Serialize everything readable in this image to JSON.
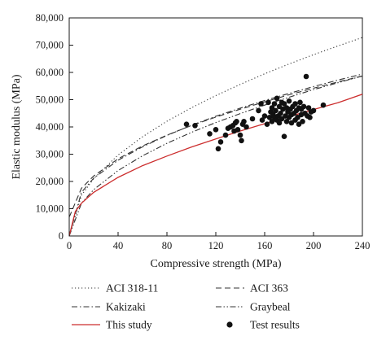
{
  "chart_data": {
    "type": "scatter",
    "xlabel": "Compressive strength (MPa)",
    "ylabel": "Elastic modulus (MPa)",
    "xlim": [
      0,
      240
    ],
    "ylim": [
      0,
      80000
    ],
    "x_ticks": [
      0,
      40,
      80,
      120,
      160,
      200,
      240
    ],
    "y_ticks": [
      0,
      10000,
      20000,
      30000,
      40000,
      50000,
      60000,
      70000,
      80000
    ],
    "x_tick_labels": [
      "0",
      "40",
      "80",
      "120",
      "160",
      "200",
      "240"
    ],
    "y_tick_labels": [
      "0",
      "10,000",
      "20,000",
      "30,000",
      "40,000",
      "50,000",
      "60,000",
      "70,000",
      "80,000"
    ],
    "grid": false,
    "legend_position": "bottom",
    "series": [
      {
        "name": "ACI 318-11",
        "kind": "line",
        "style": "dotted",
        "color": "#333333",
        "x": [
          0,
          10,
          20,
          40,
          60,
          80,
          100,
          120,
          140,
          160,
          180,
          200,
          220,
          240
        ],
        "y": [
          0,
          14900,
          21000,
          29700,
          36400,
          42100,
          47000,
          51500,
          55600,
          59500,
          63100,
          66500,
          69700,
          72800
        ]
      },
      {
        "name": "ACI 363",
        "kind": "line",
        "style": "dashed",
        "color": "#333333",
        "x": [
          0,
          10,
          20,
          40,
          60,
          80,
          100,
          120,
          140,
          160,
          180,
          200,
          220,
          240
        ],
        "y": [
          6900,
          17500,
          22000,
          28300,
          33000,
          37000,
          40500,
          43600,
          46500,
          49200,
          51800,
          54200,
          56500,
          58700
        ]
      },
      {
        "name": "Kakizaki",
        "kind": "line",
        "style": "dashdot",
        "color": "#333333",
        "x": [
          0,
          10,
          20,
          40,
          60,
          80,
          100,
          120,
          140,
          160,
          180,
          200,
          220,
          240
        ],
        "y": [
          0,
          16000,
          21200,
          27800,
          32700,
          36900,
          40600,
          43900,
          46900,
          49700,
          52300,
          54800,
          57200,
          59400
        ]
      },
      {
        "name": "Graybeal",
        "kind": "line",
        "style": "dashdotdot",
        "color": "#333333",
        "x": [
          0,
          10,
          20,
          40,
          60,
          80,
          100,
          120,
          140,
          160,
          180,
          200,
          220,
          240
        ],
        "y": [
          0,
          12000,
          17000,
          24000,
          29400,
          34000,
          38000,
          41600,
          44900,
          48000,
          50900,
          53700,
          56200,
          58700
        ]
      },
      {
        "name": "This study",
        "kind": "line",
        "style": "solid",
        "color": "#cc2e2e",
        "x": [
          0,
          5,
          10,
          20,
          40,
          60,
          80,
          100,
          120,
          140,
          160,
          180,
          200,
          220,
          240
        ],
        "y": [
          0,
          9000,
          12000,
          16000,
          21500,
          25800,
          29300,
          32600,
          35600,
          38500,
          41200,
          43800,
          46400,
          48900,
          52000
        ]
      },
      {
        "name": "Test results",
        "kind": "scatter",
        "color": "#111111",
        "x": [
          96,
          103,
          115,
          120,
          122,
          124,
          128,
          130,
          132,
          134,
          135,
          136,
          137,
          138,
          140,
          141,
          142,
          143,
          145,
          150,
          155,
          157,
          158,
          160,
          162,
          163,
          164,
          165,
          166,
          166,
          167,
          168,
          168,
          169,
          170,
          170,
          171,
          172,
          172,
          173,
          174,
          174,
          175,
          176,
          176,
          177,
          178,
          178,
          179,
          180,
          180,
          181,
          182,
          182,
          183,
          184,
          185,
          185,
          186,
          187,
          188,
          188,
          189,
          190,
          190,
          191,
          192,
          193,
          194,
          195,
          196,
          197,
          198,
          200,
          208
        ],
        "y": [
          41000,
          40500,
          37500,
          39000,
          32000,
          34500,
          37000,
          39500,
          40000,
          40500,
          38500,
          41500,
          42000,
          39000,
          37000,
          35000,
          41000,
          42000,
          40000,
          43000,
          46000,
          48500,
          42500,
          44000,
          41000,
          49000,
          43500,
          45500,
          47000,
          42000,
          44500,
          48500,
          43500,
          46000,
          50500,
          42500,
          44000,
          47500,
          41500,
          45000,
          49000,
          43000,
          46500,
          36500,
          48500,
          44000,
          47000,
          42000,
          45500,
          49500,
          43500,
          46500,
          44500,
          41500,
          47500,
          45000,
          42500,
          48500,
          46000,
          43500,
          47000,
          41000,
          49000,
          44500,
          46500,
          42000,
          47500,
          45000,
          58500,
          44000,
          47000,
          43500,
          45500,
          46000,
          48000
        ]
      }
    ]
  }
}
